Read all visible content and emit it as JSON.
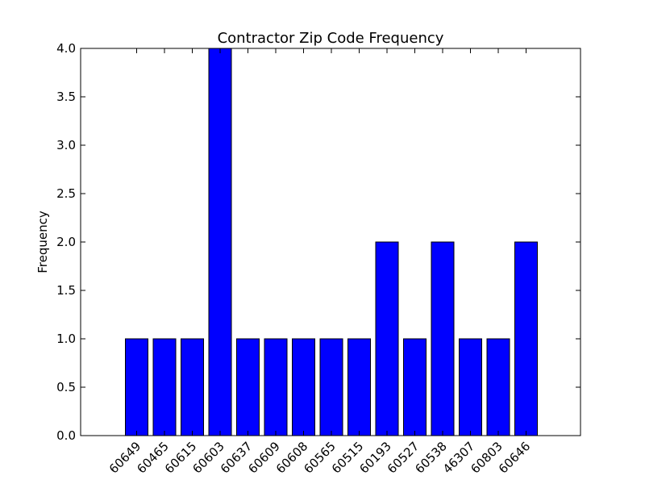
{
  "chart_data": {
    "type": "bar",
    "title": "Contractor Zip Code Frequency",
    "xlabel": "",
    "ylabel": "Frequency",
    "ylim": [
      0,
      4.0
    ],
    "yticks": [
      "0.0",
      "0.5",
      "1.0",
      "1.5",
      "2.0",
      "2.5",
      "3.0",
      "3.5",
      "4.0"
    ],
    "categories": [
      "60649",
      "60465",
      "60615",
      "60603",
      "60637",
      "60609",
      "60608",
      "60565",
      "60515",
      "60193",
      "60527",
      "60538",
      "46307",
      "60803",
      "60646"
    ],
    "values": [
      1,
      1,
      1,
      4,
      1,
      1,
      1,
      1,
      1,
      2,
      1,
      2,
      1,
      1,
      2
    ],
    "bar_color": "#0000ff",
    "grid": false
  }
}
